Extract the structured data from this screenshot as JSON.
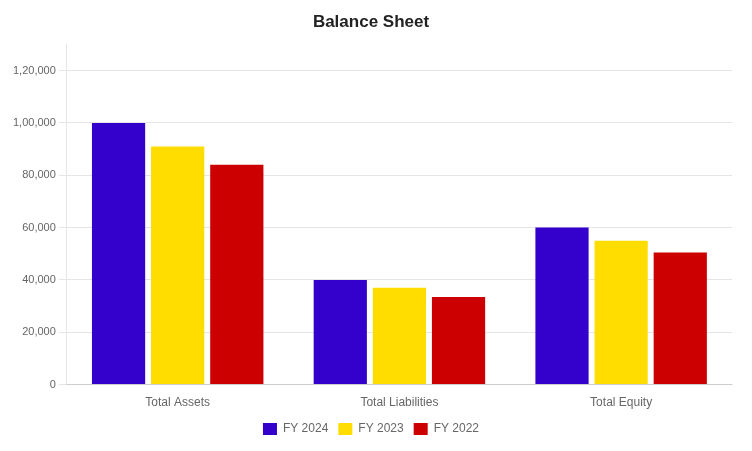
{
  "chart_data": {
    "type": "bar",
    "title": "Balance Sheet",
    "categories": [
      "Total Assets",
      "Total Liabilities",
      "Total Equity"
    ],
    "series": [
      {
        "name": "FY 2024",
        "color": "#3300cc",
        "values": [
          100000,
          40000,
          60000
        ]
      },
      {
        "name": "FY 2023",
        "color": "#ffdd00",
        "values": [
          91000,
          37000,
          55000
        ]
      },
      {
        "name": "FY 2022",
        "color": "#cc0000",
        "values": [
          84000,
          33500,
          50500
        ]
      }
    ],
    "ylim": [
      0,
      130000
    ],
    "yticks": [
      0,
      {
        "value": 20000,
        "label": "20,000"
      },
      {
        "value": 40000,
        "label": "40,000"
      },
      {
        "value": 60000,
        "label": "60,000"
      },
      {
        "value": 80000,
        "label": "80,000"
      },
      {
        "value": 100000,
        "label": "1,00,000"
      },
      {
        "value": 120000,
        "label": "1,20,000"
      }
    ],
    "grid": true,
    "legend": "bottom"
  }
}
